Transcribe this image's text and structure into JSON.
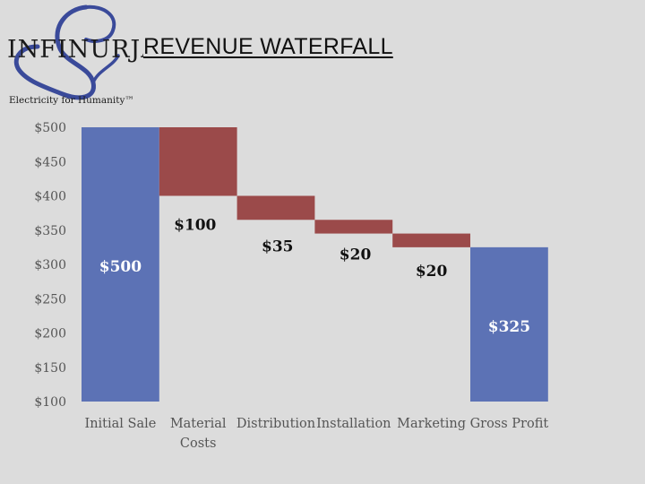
{
  "header": {
    "title": "REVENUE WATERFALL",
    "logo_name": "INFINURJA",
    "logo_tagline": "Electricity for Humanity™"
  },
  "colors": {
    "total": "#5c72b5",
    "decrease": "#9b4a4a",
    "label_total": "#ffffff",
    "label_decrease": "#111111"
  },
  "chart_data": {
    "type": "bar",
    "subtype": "waterfall",
    "title": "REVENUE WATERFALL",
    "xlabel": "",
    "ylabel": "",
    "ylim": [
      100,
      500
    ],
    "yticks": [
      100,
      150,
      200,
      250,
      300,
      350,
      400,
      450,
      500
    ],
    "ytick_labels": [
      "$100",
      "$150",
      "$200",
      "$250",
      "$300",
      "$350",
      "$400",
      "$450",
      "$500"
    ],
    "grid": false,
    "legend": "none",
    "categories": [
      "Initial Sale",
      "Material Costs",
      "Distribution",
      "Installation",
      "Marketing",
      "Gross Profit"
    ],
    "category_lines": [
      [
        "Initial Sale"
      ],
      [
        "Material",
        "Costs"
      ],
      [
        "Distribution"
      ],
      [
        "Installation"
      ],
      [
        "Marketing"
      ],
      [
        "Gross Profit"
      ]
    ],
    "bars": [
      {
        "category": "Initial Sale",
        "kind": "total",
        "start": 0,
        "end": 500,
        "label": "$500"
      },
      {
        "category": "Material Costs",
        "kind": "decrease",
        "start": 500,
        "end": 400,
        "label": "$100"
      },
      {
        "category": "Distribution",
        "kind": "decrease",
        "start": 400,
        "end": 365,
        "label": "$35"
      },
      {
        "category": "Installation",
        "kind": "decrease",
        "start": 365,
        "end": 345,
        "label": "$20"
      },
      {
        "category": "Marketing",
        "kind": "decrease",
        "start": 345,
        "end": 325,
        "label": "$20"
      },
      {
        "category": "Gross Profit",
        "kind": "total",
        "start": 0,
        "end": 325,
        "label": "$325"
      }
    ]
  }
}
